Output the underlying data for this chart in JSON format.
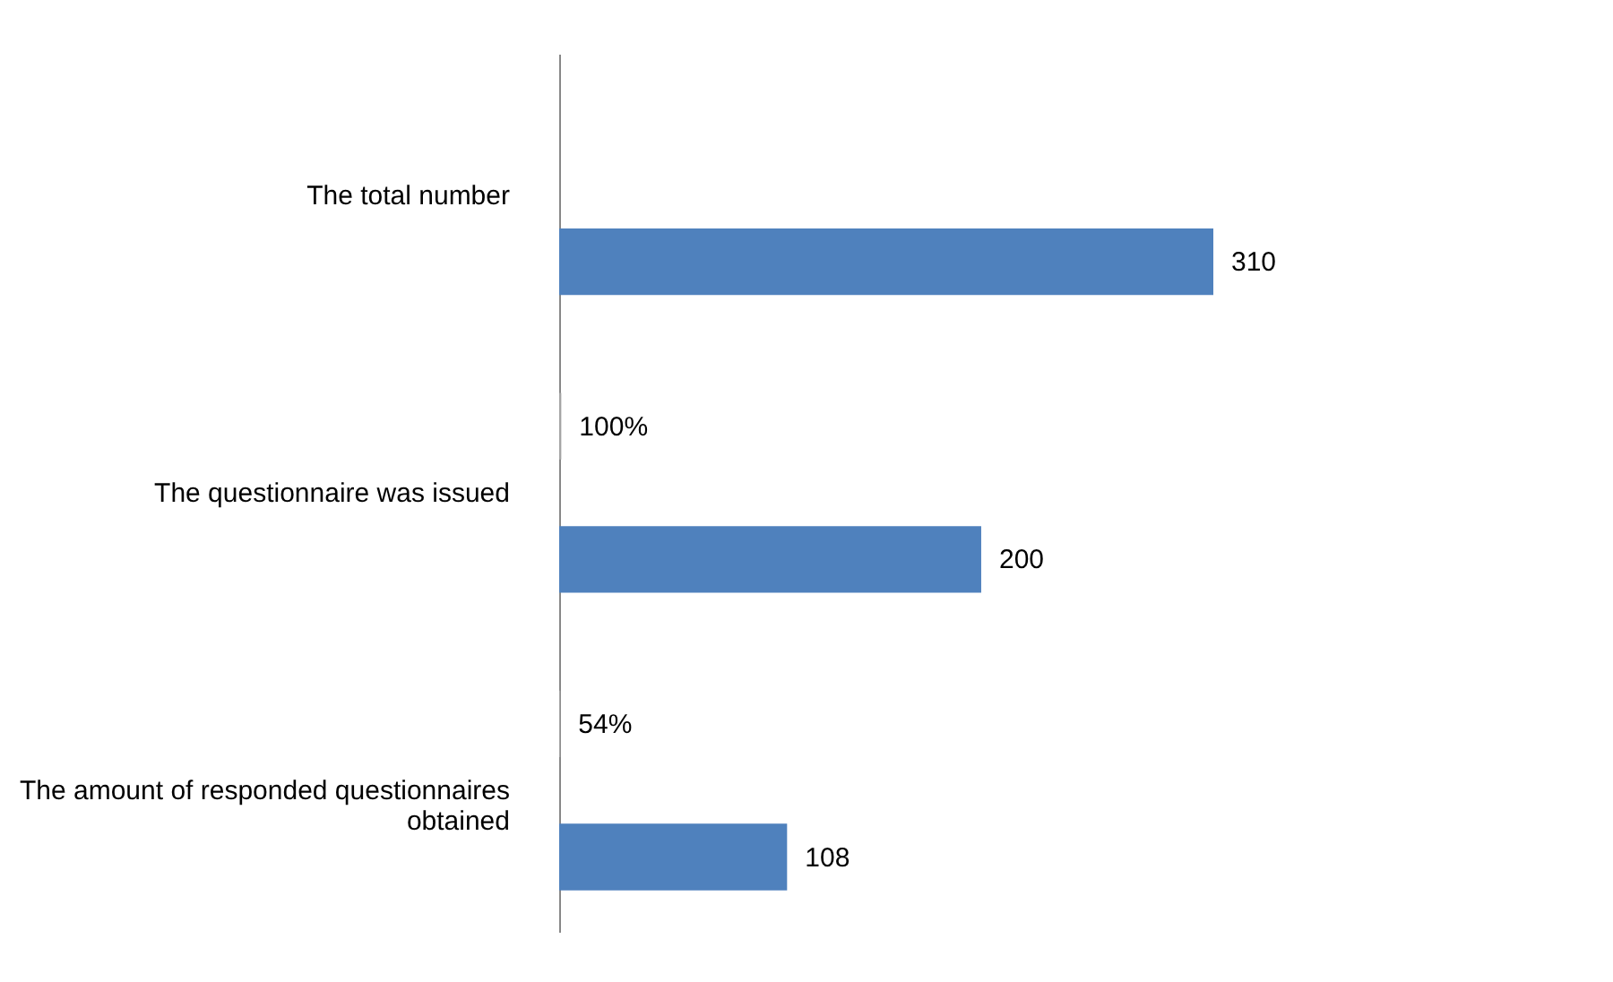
{
  "chart_data": {
    "type": "bar",
    "orientation": "horizontal",
    "legend": false,
    "grid": false,
    "categories": [
      "The total number",
      "The questionnaire was issued",
      "The amount of responded questionnaires obtained"
    ],
    "series": [
      {
        "color": "#4f81bd",
        "values": [
          310,
          200,
          108
        ],
        "value_labels": [
          "310",
          "200",
          "108"
        ]
      },
      {
        "color": "#a5a5a5",
        "values": [
          null,
          1,
          0.54
        ],
        "value_labels": [
          null,
          "100%",
          "54%"
        ]
      }
    ]
  }
}
